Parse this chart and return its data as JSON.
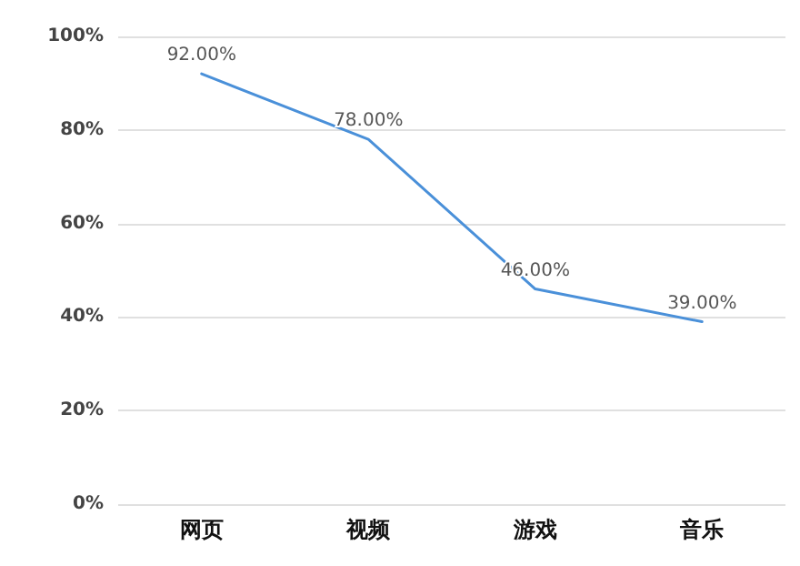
{
  "chart_data": {
    "type": "line",
    "categories": [
      "网页",
      "视频",
      "游戏",
      "音乐"
    ],
    "series": [
      {
        "color": "#4a90d9",
        "values": [
          92,
          78,
          46,
          39
        ],
        "value_labels": [
          "92.00%",
          "78.00%",
          "46.00%",
          "39.00%"
        ]
      }
    ],
    "ylim": [
      0,
      100
    ],
    "yticks": [
      {
        "value": 0,
        "label": "0%"
      },
      {
        "value": 20,
        "label": "20%"
      },
      {
        "value": 40,
        "label": "40%"
      },
      {
        "value": 60,
        "label": "60%"
      },
      {
        "value": 80,
        "label": "80%"
      },
      {
        "value": 100,
        "label": "100%"
      }
    ],
    "grid": "y",
    "marker": "none",
    "line_style": "solid"
  }
}
